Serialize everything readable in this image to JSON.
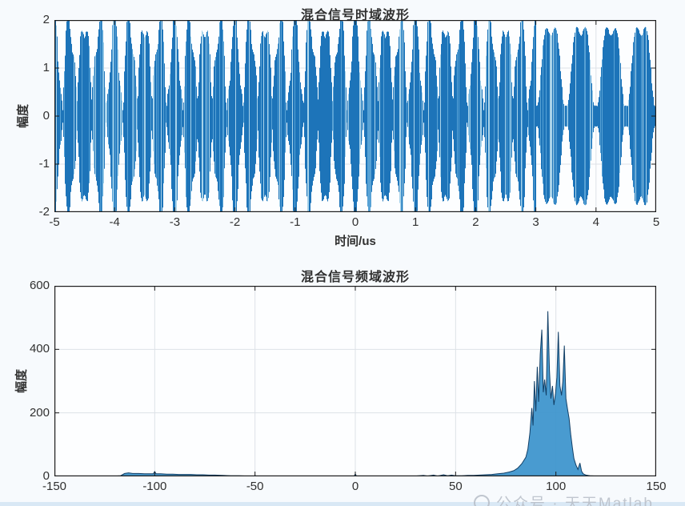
{
  "page": {
    "background": "#f7fafd",
    "bottom_strip_color": "#d9e8f5"
  },
  "colors": {
    "trace_main": "#1d74b9",
    "trace_mid": "#58a2d5",
    "trace_light": "#a8d3ea",
    "spectrum_fill": "#3a93cc",
    "spectrum_stroke": "#123f66",
    "grid": "#dde2e7",
    "axis": "#1c1c1c",
    "text": "#303030",
    "watermark": "#b7bdc7"
  },
  "watermark": {
    "text": "公众号 · 天天Matlab"
  },
  "chart_data": [
    {
      "type": "line",
      "id": "time-domain",
      "title": "混合信号时域波形",
      "xlabel": "时间/us",
      "ylabel": "幅度",
      "xlim": [
        -5,
        5
      ],
      "ylim": [
        -2,
        2
      ],
      "xticks": [
        -5,
        -4,
        -3,
        -2,
        -1,
        0,
        1,
        2,
        3,
        4,
        5
      ],
      "yticks": [
        2,
        1,
        0,
        -1,
        -2
      ],
      "grid": true,
      "signal_model": {
        "note": "dense amplitude-modulated multi-tone mixture filling the axes; beat lobes ~0.25us wide for t<3us, ~0.5us wide for t>3us, peaks clipped at ±2; rendered as per-pixel min/max envelope",
        "segments": [
          {
            "t_start": -5,
            "t_end": 3,
            "components": [
              {
                "freq_mhz": 96,
                "amp": 0.97,
                "phase_pi": 0
              },
              {
                "freq_mhz": 100,
                "amp": 0.97,
                "phase_pi": 0
              },
              {
                "freq_mhz": 105,
                "amp": 0.3,
                "phase_pi": 0
              }
            ]
          },
          {
            "t_start": 3,
            "t_end": 5,
            "components": [
              {
                "freq_mhz": 99,
                "amp": 0.95,
                "phase_pi": 0
              },
              {
                "freq_mhz": 101,
                "amp": 0.95,
                "phase_pi": 1
              },
              {
                "freq_mhz": 105,
                "amp": 0.22,
                "phase_pi": 0
              }
            ]
          }
        ]
      }
    },
    {
      "type": "line",
      "id": "frequency-domain",
      "title": "混合信号频域波形",
      "xlabel": "",
      "ylabel": "幅度",
      "xlim": [
        -150,
        150
      ],
      "ylim": [
        0,
        600
      ],
      "xticks": [
        -150,
        -100,
        -50,
        0,
        50,
        100,
        150
      ],
      "yticks": [
        0,
        200,
        400,
        600
      ],
      "grid": true,
      "points": [
        [
          -150,
          0
        ],
        [
          -122,
          0
        ],
        [
          -117,
          2
        ],
        [
          -115,
          9
        ],
        [
          -113,
          11
        ],
        [
          -111,
          9
        ],
        [
          -108,
          9
        ],
        [
          -105,
          8
        ],
        [
          -102,
          8
        ],
        [
          -100.7,
          8
        ],
        [
          -100,
          15
        ],
        [
          -99.3,
          8
        ],
        [
          -97,
          8
        ],
        [
          -94,
          7
        ],
        [
          -91,
          7
        ],
        [
          -88,
          6
        ],
        [
          -85,
          6
        ],
        [
          -82,
          6
        ],
        [
          -79,
          5
        ],
        [
          -76,
          5
        ],
        [
          -73,
          4
        ],
        [
          -70,
          4
        ],
        [
          -66,
          3
        ],
        [
          -62,
          2
        ],
        [
          -58,
          2
        ],
        [
          -54,
          1
        ],
        [
          -50.4,
          1
        ],
        [
          -50,
          3
        ],
        [
          -49.6,
          1
        ],
        [
          -45,
          1
        ],
        [
          -38,
          1
        ],
        [
          -30,
          1
        ],
        [
          -20,
          1
        ],
        [
          -10,
          1
        ],
        [
          -0.5,
          1
        ],
        [
          0,
          8
        ],
        [
          0.5,
          1
        ],
        [
          10,
          1
        ],
        [
          20,
          1
        ],
        [
          30,
          1
        ],
        [
          34,
          3
        ],
        [
          36,
          1
        ],
        [
          39,
          4
        ],
        [
          41,
          1
        ],
        [
          44,
          5
        ],
        [
          46,
          2
        ],
        [
          48,
          4
        ],
        [
          50,
          2
        ],
        [
          53,
          2
        ],
        [
          56,
          3
        ],
        [
          59,
          3
        ],
        [
          62,
          4
        ],
        [
          65,
          5
        ],
        [
          68,
          6
        ],
        [
          71,
          8
        ],
        [
          74,
          10
        ],
        [
          77,
          14
        ],
        [
          79,
          18
        ],
        [
          81,
          26
        ],
        [
          83,
          40
        ],
        [
          85,
          60
        ],
        [
          86,
          85
        ],
        [
          87,
          135
        ],
        [
          88,
          215
        ],
        [
          88.6,
          160
        ],
        [
          89.3,
          300
        ],
        [
          90,
          205
        ],
        [
          90.7,
          345
        ],
        [
          91.4,
          235
        ],
        [
          92.2,
          385
        ],
        [
          93,
          462
        ],
        [
          93.7,
          265
        ],
        [
          94.4,
          305
        ],
        [
          95.2,
          255
        ],
        [
          96,
          520
        ],
        [
          96.8,
          335
        ],
        [
          97.5,
          245
        ],
        [
          98.3,
          285
        ],
        [
          99,
          225
        ],
        [
          99.8,
          262
        ],
        [
          100.5,
          312
        ],
        [
          101.2,
          455
        ],
        [
          102,
          285
        ],
        [
          102.8,
          255
        ],
        [
          103.5,
          300
        ],
        [
          104.2,
          412
        ],
        [
          105,
          245
        ],
        [
          105.8,
          212
        ],
        [
          106.6,
          182
        ],
        [
          107.4,
          132
        ],
        [
          108.2,
          92
        ],
        [
          109,
          56
        ],
        [
          110,
          36
        ],
        [
          111,
          22
        ],
        [
          112,
          42
        ],
        [
          112.8,
          16
        ],
        [
          113.6,
          8
        ],
        [
          115,
          4
        ],
        [
          117,
          2
        ],
        [
          120,
          1
        ],
        [
          128,
          0
        ],
        [
          150,
          0
        ]
      ]
    }
  ]
}
